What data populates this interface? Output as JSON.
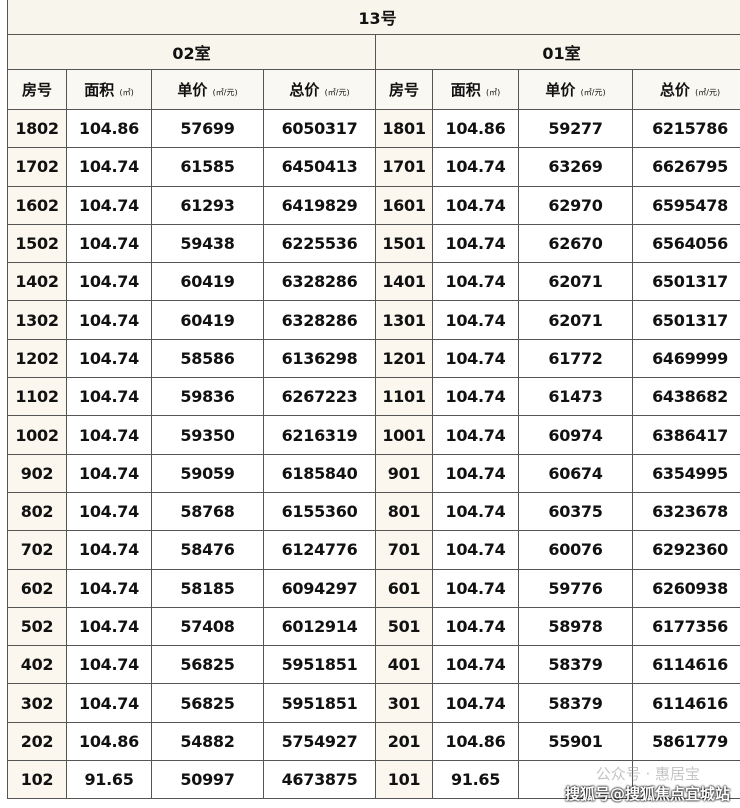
{
  "title": "13号",
  "sections": [
    "02室",
    "01室"
  ],
  "headers": [
    {
      "label": "房号",
      "unit": ""
    },
    {
      "label": "面积",
      "unit": "(㎡)"
    },
    {
      "label": "单价",
      "unit": "(㎡/元)"
    },
    {
      "label": "总价",
      "unit": "(㎡/元)"
    }
  ],
  "rows": [
    [
      "1802",
      "104.86",
      "57699",
      "6050317",
      "1801",
      "104.86",
      "59277",
      "6215786"
    ],
    [
      "1702",
      "104.74",
      "61585",
      "6450413",
      "1701",
      "104.74",
      "63269",
      "6626795"
    ],
    [
      "1602",
      "104.74",
      "61293",
      "6419829",
      "1601",
      "104.74",
      "62970",
      "6595478"
    ],
    [
      "1502",
      "104.74",
      "59438",
      "6225536",
      "1501",
      "104.74",
      "62670",
      "6564056"
    ],
    [
      "1402",
      "104.74",
      "60419",
      "6328286",
      "1401",
      "104.74",
      "62071",
      "6501317"
    ],
    [
      "1302",
      "104.74",
      "60419",
      "6328286",
      "1301",
      "104.74",
      "62071",
      "6501317"
    ],
    [
      "1202",
      "104.74",
      "58586",
      "6136298",
      "1201",
      "104.74",
      "61772",
      "6469999"
    ],
    [
      "1102",
      "104.74",
      "59836",
      "6267223",
      "1101",
      "104.74",
      "61473",
      "6438682"
    ],
    [
      "1002",
      "104.74",
      "59350",
      "6216319",
      "1001",
      "104.74",
      "60974",
      "6386417"
    ],
    [
      "902",
      "104.74",
      "59059",
      "6185840",
      "901",
      "104.74",
      "60674",
      "6354995"
    ],
    [
      "802",
      "104.74",
      "58768",
      "6155360",
      "801",
      "104.74",
      "60375",
      "6323678"
    ],
    [
      "702",
      "104.74",
      "58476",
      "6124776",
      "701",
      "104.74",
      "60076",
      "6292360"
    ],
    [
      "602",
      "104.74",
      "58185",
      "6094297",
      "601",
      "104.74",
      "59776",
      "6260938"
    ],
    [
      "502",
      "104.74",
      "57408",
      "6012914",
      "501",
      "104.74",
      "58978",
      "6177356"
    ],
    [
      "402",
      "104.74",
      "56825",
      "5951851",
      "401",
      "104.74",
      "58379",
      "6114616"
    ],
    [
      "302",
      "104.74",
      "56825",
      "5951851",
      "301",
      "104.74",
      "58379",
      "6114616"
    ],
    [
      "202",
      "104.86",
      "54882",
      "5754927",
      "201",
      "104.86",
      "55901",
      "5861779"
    ],
    [
      "102",
      "91.65",
      "50997",
      "4673875",
      "101",
      "91.65",
      "",
      ""
    ]
  ],
  "watermarks": [
    "公众号 · 惠居宝",
    "搜狐号@搜狐焦点宜城站"
  ]
}
